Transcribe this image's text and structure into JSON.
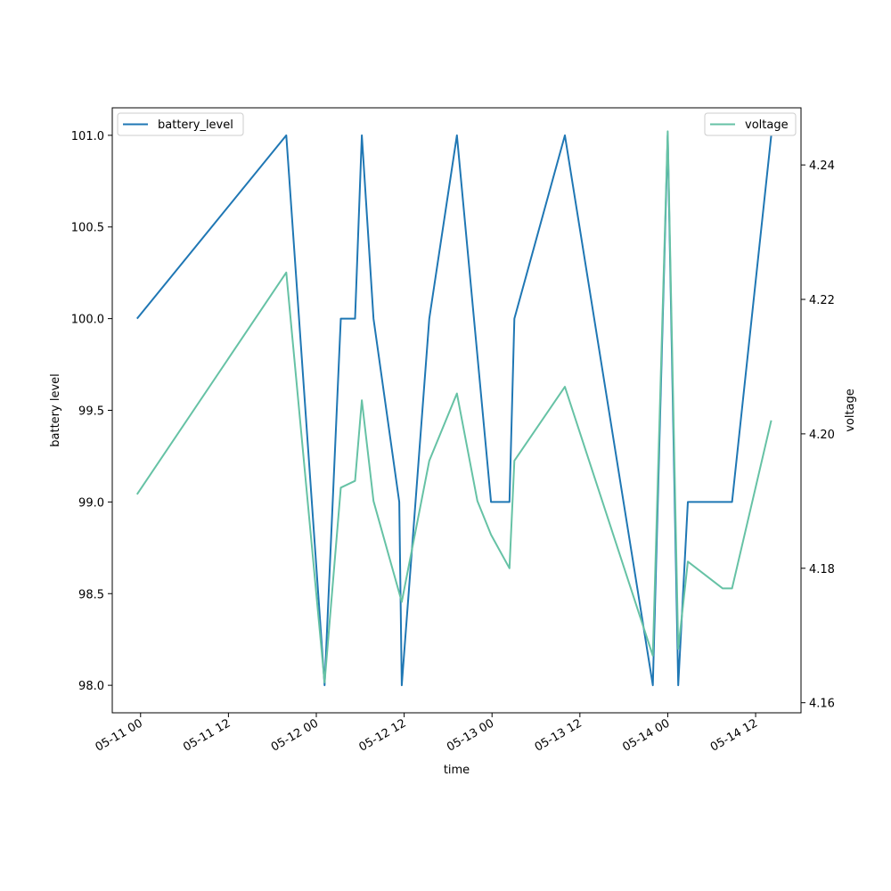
{
  "chart_data": {
    "type": "line",
    "xlabel": "time",
    "ylabel_left": "battery level",
    "ylabel_right": "voltage",
    "xlim": [
      "2024-05-10T20:08",
      "2024-05-14T18:12"
    ],
    "ylim_left": [
      97.85,
      101.15
    ],
    "ylim_right": [
      4.1585,
      4.2485
    ],
    "x_ticks": [
      {
        "t": "2024-05-11T00:00",
        "label": "05-11 00"
      },
      {
        "t": "2024-05-11T12:00",
        "label": "05-11 12"
      },
      {
        "t": "2024-05-12T00:00",
        "label": "05-12 00"
      },
      {
        "t": "2024-05-12T12:00",
        "label": "05-12 12"
      },
      {
        "t": "2024-05-13T00:00",
        "label": "05-13 00"
      },
      {
        "t": "2024-05-13T12:00",
        "label": "05-13 12"
      },
      {
        "t": "2024-05-14T00:00",
        "label": "05-14 00"
      },
      {
        "t": "2024-05-14T12:00",
        "label": "05-14 12"
      }
    ],
    "y_ticks_left": [
      "98.0",
      "98.5",
      "99.0",
      "99.5",
      "100.0",
      "100.5",
      "101.0"
    ],
    "y_ticks_right": [
      "4.16",
      "4.18",
      "4.20",
      "4.22",
      "4.24"
    ],
    "series": [
      {
        "name": "battery_level",
        "axis": "left",
        "color": "#1f77b4",
        "points": [
          {
            "t": "2024-05-10T23:31",
            "v": 100
          },
          {
            "t": "2024-05-11T19:54",
            "v": 101
          },
          {
            "t": "2024-05-12T01:08",
            "v": 98
          },
          {
            "t": "2024-05-12T03:21",
            "v": 100
          },
          {
            "t": "2024-05-12T05:18",
            "v": 100
          },
          {
            "t": "2024-05-12T06:13",
            "v": 101
          },
          {
            "t": "2024-05-12T07:49",
            "v": 100
          },
          {
            "t": "2024-05-12T11:20",
            "v": 99
          },
          {
            "t": "2024-05-12T11:40",
            "v": 98
          },
          {
            "t": "2024-05-12T15:26",
            "v": 100
          },
          {
            "t": "2024-05-12T19:12",
            "v": 101
          },
          {
            "t": "2024-05-12T23:52",
            "v": 99
          },
          {
            "t": "2024-05-13T02:23",
            "v": 99
          },
          {
            "t": "2024-05-13T03:03",
            "v": 100
          },
          {
            "t": "2024-05-13T09:57",
            "v": 101
          },
          {
            "t": "2024-05-13T21:58",
            "v": 98
          },
          {
            "t": "2024-05-14T00:00",
            "v": 101
          },
          {
            "t": "2024-05-14T01:26",
            "v": 98
          },
          {
            "t": "2024-05-14T02:45",
            "v": 99
          },
          {
            "t": "2024-05-14T08:47",
            "v": 99
          },
          {
            "t": "2024-05-14T14:08",
            "v": 101
          }
        ]
      },
      {
        "name": "voltage",
        "axis": "right",
        "color": "#66c2a5",
        "points": [
          {
            "t": "2024-05-10T23:31",
            "v": 4.191
          },
          {
            "t": "2024-05-11T19:54",
            "v": 4.224
          },
          {
            "t": "2024-05-12T01:08",
            "v": 4.163
          },
          {
            "t": "2024-05-12T03:21",
            "v": 4.192
          },
          {
            "t": "2024-05-12T05:18",
            "v": 4.193
          },
          {
            "t": "2024-05-12T06:13",
            "v": 4.205
          },
          {
            "t": "2024-05-12T07:49",
            "v": 4.19
          },
          {
            "t": "2024-05-12T11:40",
            "v": 4.175
          },
          {
            "t": "2024-05-12T15:26",
            "v": 4.196
          },
          {
            "t": "2024-05-12T19:12",
            "v": 4.206
          },
          {
            "t": "2024-05-12T22:00",
            "v": 4.19
          },
          {
            "t": "2024-05-12T23:52",
            "v": 4.185
          },
          {
            "t": "2024-05-13T02:23",
            "v": 4.18
          },
          {
            "t": "2024-05-13T03:03",
            "v": 4.196
          },
          {
            "t": "2024-05-13T09:57",
            "v": 4.207
          },
          {
            "t": "2024-05-13T21:58",
            "v": 4.167
          },
          {
            "t": "2024-05-14T00:00",
            "v": 4.245
          },
          {
            "t": "2024-05-14T01:26",
            "v": 4.168
          },
          {
            "t": "2024-05-14T02:45",
            "v": 4.181
          },
          {
            "t": "2024-05-14T07:30",
            "v": 4.177
          },
          {
            "t": "2024-05-14T08:47",
            "v": 4.177
          },
          {
            "t": "2024-05-14T14:08",
            "v": 4.202
          }
        ]
      }
    ],
    "legends": [
      {
        "series": "battery_level",
        "placement": "upper-left"
      },
      {
        "series": "voltage",
        "placement": "upper-right"
      }
    ]
  }
}
